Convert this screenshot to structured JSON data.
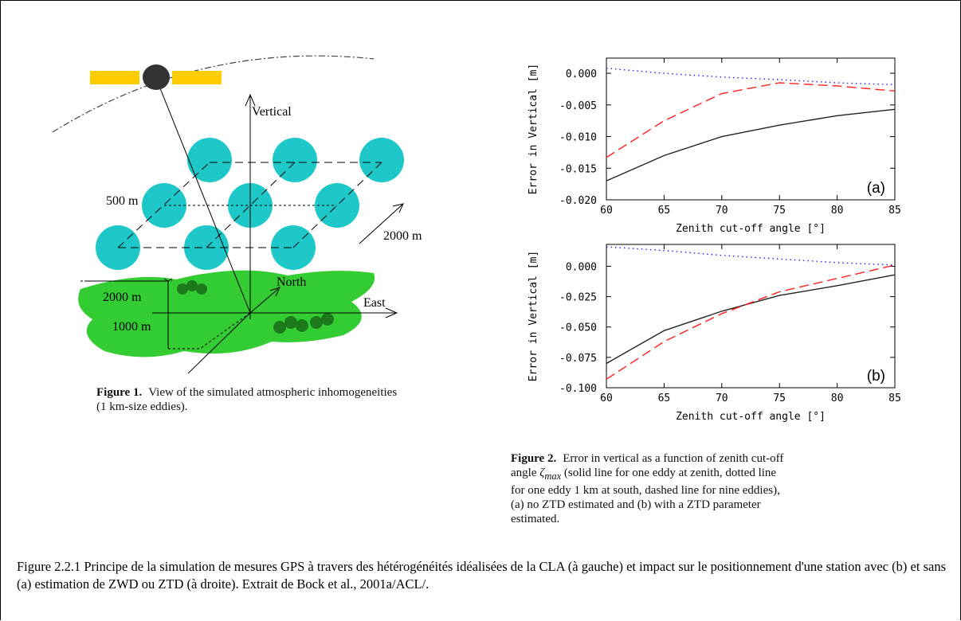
{
  "diagram": {
    "labels": {
      "vertical": "Vertical",
      "eddy_size": "500 m",
      "spacing_right": "2000 m",
      "north": "North",
      "east": "East",
      "spacing_left": "2000 m",
      "height": "1000 m"
    }
  },
  "figure1_caption": {
    "label": "Figure 1.",
    "text": "View of the simulated atmospheric inhomogeneities (1 km-size eddies)."
  },
  "chart_data": [
    {
      "type": "line",
      "annotation": "(a)",
      "x_label": "Zenith cut-off angle [°]",
      "y_label": "Error in Vertical [m]",
      "x": [
        60,
        65,
        70,
        75,
        80,
        85
      ],
      "xlim": [
        60,
        85
      ],
      "xticks": [
        60,
        65,
        70,
        75,
        80,
        85
      ],
      "ylim": [
        -0.02,
        0.0024
      ],
      "yticks": [
        {
          "value": 0,
          "label": "0.000"
        },
        {
          "value": -0.005,
          "label": "-0.005"
        },
        {
          "value": -0.01,
          "label": "-0.010"
        },
        {
          "value": -0.015,
          "label": "-0.015"
        },
        {
          "value": -0.02,
          "label": "-0.020"
        }
      ],
      "series": [
        {
          "color": "#222222",
          "line_style": "solid",
          "values": [
            -0.017,
            -0.013,
            -0.01,
            -0.0082,
            -0.0067,
            -0.0057
          ]
        },
        {
          "color": "#ff2020",
          "line_style": "dashed",
          "values": [
            -0.0133,
            -0.0075,
            -0.0032,
            -0.0015,
            -0.002,
            -0.0028
          ]
        },
        {
          "color": "#2020ff",
          "line_style": "dotted",
          "values": [
            0.0008,
            0.0,
            -0.0006,
            -0.001,
            -0.0015,
            -0.0018
          ]
        }
      ]
    },
    {
      "type": "line",
      "annotation": "(b)",
      "x_label": "Zenith cut-off angle [°]",
      "y_label": "Error in Vertical [m]",
      "x": [
        60,
        65,
        70,
        75,
        80,
        85
      ],
      "xlim": [
        60,
        85
      ],
      "xticks": [
        60,
        65,
        70,
        75,
        80,
        85
      ],
      "ylim": [
        -0.1,
        0.018
      ],
      "yticks": [
        {
          "value": 0,
          "label": "0.000"
        },
        {
          "value": -0.025,
          "label": "-0.025"
        },
        {
          "value": -0.05,
          "label": "-0.050"
        },
        {
          "value": -0.075,
          "label": "-0.075"
        },
        {
          "value": -0.1,
          "label": "-0.100"
        }
      ],
      "series": [
        {
          "color": "#222222",
          "line_style": "solid",
          "values": [
            -0.08,
            -0.053,
            -0.037,
            -0.024,
            -0.016,
            -0.007
          ]
        },
        {
          "color": "#ff2020",
          "line_style": "dashed",
          "values": [
            -0.093,
            -0.062,
            -0.039,
            -0.021,
            -0.01,
            0.001
          ]
        },
        {
          "color": "#2020ff",
          "line_style": "dotted",
          "values": [
            0.016,
            0.013,
            0.009,
            0.006,
            0.003,
            0.001
          ]
        }
      ]
    }
  ],
  "figure2_caption": {
    "label": "Figure 2.",
    "text_before": "Error in vertical as a function of zenith cut-off angle",
    "symbol": "ζ",
    "subscript": "max",
    "text_after": "(solid line for one eddy at zenith, dotted line for one eddy 1 km at south, dashed line for nine eddies), (a) no ZTD estimated and (b) with a ZTD parameter estimated."
  },
  "main_caption": "Figure 2.2.1 Principe de la simulation de mesures GPS à travers des hétérogénéités idéalisées de la CLA (à gauche) et impact sur le positionnement d'une station avec (b) et sans (a) estimation de ZWD ou ZTD (à droite). Extrait de Bock et al., 2001a/ACL/."
}
